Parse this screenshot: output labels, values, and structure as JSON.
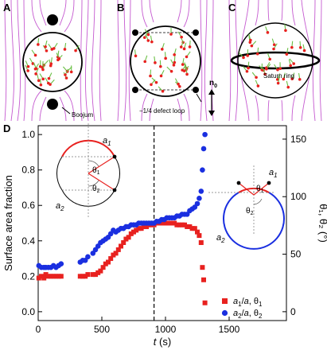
{
  "panels": {
    "A": {
      "label": "A",
      "annotation": "Boojum"
    },
    "B": {
      "label": "B",
      "annotation": "−1/4 defect loop"
    },
    "C": {
      "label": "C",
      "annotation": "Saturn ring"
    },
    "n0": {
      "base": "n",
      "sub": "0"
    }
  },
  "colors": {
    "red": "#e8211f",
    "blue": "#1a2fe0",
    "field": "#c55ad0",
    "rod": "#6abf45"
  },
  "chart_data": {
    "type": "scatter",
    "panel_label": "D",
    "xlabel": "t (s)",
    "ylabel_left": "Surface area fraction",
    "ylabel_right": "θ₁, θ₂ (°)",
    "xlim": [
      0,
      1950
    ],
    "ylim_left": [
      -0.05,
      1.05
    ],
    "ylim_right": [
      -7.7,
      161.7
    ],
    "xticks": [
      "0",
      "500",
      "1000",
      "1500"
    ],
    "yticks_left": [
      "0.0",
      "0.2",
      "0.4",
      "0.6",
      "0.8",
      "1.0"
    ],
    "yticks_right": [
      "0",
      "50",
      "100",
      "150"
    ],
    "vline_x": 910,
    "legend": [
      {
        "label": "a₁/a, θ₁",
        "marker": "square",
        "color": "#e8211f"
      },
      {
        "label": "a₂/a, θ₂",
        "marker": "circle",
        "color": "#1a2fe0"
      }
    ],
    "series": [
      {
        "name": "a₁/a, θ₁",
        "marker": "square",
        "color": "#e8211f",
        "x": [
          5,
          25,
          45,
          60,
          80,
          100,
          120,
          140,
          160,
          180,
          330,
          350,
          370,
          390,
          430,
          450,
          470,
          490,
          510,
          530,
          550,
          570,
          590,
          610,
          630,
          650,
          670,
          690,
          710,
          730,
          750,
          770,
          790,
          810,
          830,
          850,
          870,
          890,
          910,
          930,
          950,
          970,
          990,
          1010,
          1030,
          1050,
          1070,
          1090,
          1110,
          1130,
          1150,
          1170,
          1190,
          1210,
          1230,
          1250,
          1265,
          1280,
          1290,
          1300,
          1310
        ],
        "y": [
          0.19,
          0.2,
          0.19,
          0.21,
          0.2,
          0.2,
          0.2,
          0.2,
          0.2,
          0.2,
          0.2,
          0.2,
          0.2,
          0.21,
          0.21,
          0.21,
          0.22,
          0.23,
          0.25,
          0.27,
          0.28,
          0.3,
          0.32,
          0.33,
          0.35,
          0.37,
          0.39,
          0.41,
          0.42,
          0.44,
          0.45,
          0.46,
          0.47,
          0.47,
          0.48,
          0.48,
          0.49,
          0.49,
          0.49,
          0.5,
          0.5,
          0.5,
          0.5,
          0.5,
          0.5,
          0.5,
          0.5,
          0.49,
          0.49,
          0.49,
          0.49,
          0.48,
          0.48,
          0.47,
          0.47,
          0.45,
          0.43,
          0.39,
          0.25,
          0.18,
          0.05
        ]
      },
      {
        "name": "a₂/a, θ₂",
        "marker": "circle",
        "color": "#1a2fe0",
        "x": [
          5,
          25,
          45,
          60,
          80,
          100,
          120,
          140,
          160,
          180,
          330,
          350,
          370,
          390,
          430,
          450,
          470,
          490,
          510,
          530,
          550,
          570,
          590,
          610,
          630,
          650,
          670,
          690,
          710,
          730,
          750,
          770,
          790,
          810,
          830,
          850,
          870,
          890,
          910,
          930,
          950,
          970,
          990,
          1010,
          1030,
          1050,
          1070,
          1090,
          1110,
          1130,
          1150,
          1170,
          1190,
          1210,
          1230,
          1250,
          1265,
          1280,
          1290,
          1300,
          1310
        ],
        "y": [
          0.26,
          0.25,
          0.25,
          0.25,
          0.25,
          0.25,
          0.26,
          0.25,
          0.26,
          0.27,
          0.28,
          0.29,
          0.29,
          0.31,
          0.33,
          0.35,
          0.37,
          0.39,
          0.4,
          0.41,
          0.42,
          0.44,
          0.46,
          0.45,
          0.46,
          0.47,
          0.47,
          0.48,
          0.48,
          0.49,
          0.49,
          0.49,
          0.5,
          0.5,
          0.5,
          0.5,
          0.5,
          0.5,
          0.5,
          0.51,
          0.51,
          0.52,
          0.52,
          0.53,
          0.53,
          0.53,
          0.53,
          0.54,
          0.54,
          0.55,
          0.55,
          0.55,
          0.57,
          0.58,
          0.59,
          0.61,
          0.64,
          0.68,
          0.8,
          0.92,
          1.0
        ]
      }
    ],
    "insets": {
      "left": {
        "labels": [
          "a₁",
          "a₂",
          "θ₁",
          "θ₂"
        ]
      },
      "right": {
        "labels": [
          "a₁",
          "a₂",
          "θ₁",
          "θ₂"
        ]
      }
    }
  }
}
